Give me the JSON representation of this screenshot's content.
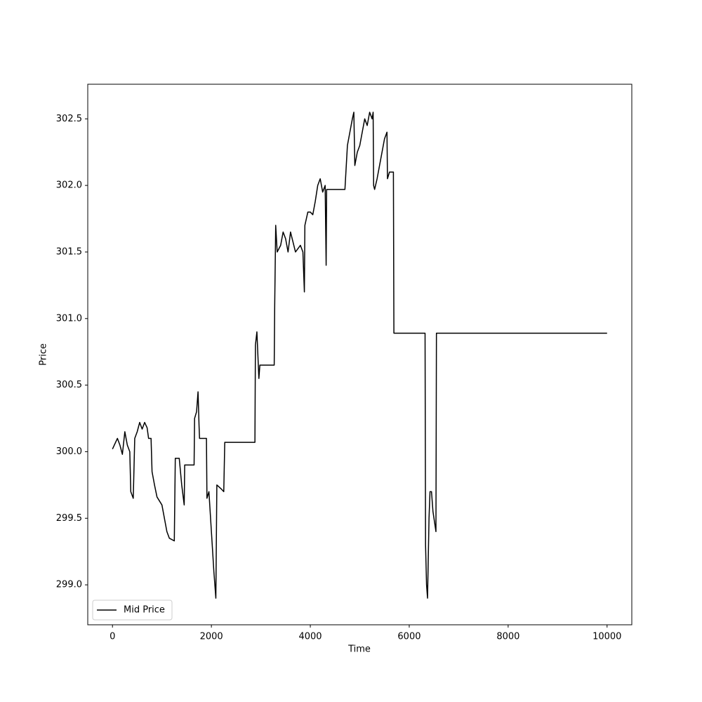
{
  "chart_data": {
    "type": "line",
    "xlabel": "Time",
    "ylabel": "Price",
    "xlim": [
      -500,
      10500
    ],
    "ylim": [
      298.7,
      302.76
    ],
    "xticks": [
      0,
      2000,
      4000,
      6000,
      8000,
      10000
    ],
    "yticks": [
      {
        "value": 299,
        "label": "299.0"
      },
      299.5,
      {
        "value": 300,
        "label": "300.0"
      },
      300.5,
      {
        "value": 301,
        "label": "301.0"
      },
      301.5,
      {
        "value": 302,
        "label": "302.0"
      },
      302.5
    ],
    "legend": "lower left",
    "x": [
      0,
      100,
      150,
      200,
      250,
      300,
      350,
      370,
      420,
      450,
      500,
      550,
      600,
      650,
      700,
      730,
      780,
      800,
      850,
      900,
      1000,
      1100,
      1150,
      1250,
      1270,
      1350,
      1400,
      1450,
      1460,
      1650,
      1660,
      1700,
      1730,
      1750,
      1760,
      1900,
      1910,
      1950,
      2000,
      2050,
      2090,
      2110,
      2200,
      2250,
      2270,
      2880,
      2890,
      2920,
      2960,
      2980,
      3270,
      3280,
      3300,
      3330,
      3400,
      3450,
      3500,
      3550,
      3600,
      3700,
      3800,
      3850,
      3880,
      3890,
      3950,
      4000,
      4050,
      4100,
      4150,
      4200,
      4250,
      4300,
      4320,
      4330,
      4700,
      4750,
      4800,
      4850,
      4880,
      4900,
      4950,
      5000,
      5050,
      5100,
      5150,
      5200,
      5250,
      5270,
      5280,
      5300,
      5350,
      5400,
      5450,
      5500,
      5550,
      5560,
      5600,
      5650,
      5680,
      5690,
      6320,
      6330,
      6350,
      6370,
      6400,
      6420,
      6450,
      6480,
      6520,
      6540,
      6550,
      10000
    ],
    "series": [
      {
        "name": "Mid Price",
        "color": "#000000",
        "values": [
          300.02,
          300.1,
          300.05,
          299.98,
          300.15,
          300.05,
          300.0,
          299.7,
          299.65,
          300.1,
          300.15,
          300.22,
          300.17,
          300.22,
          300.18,
          300.1,
          300.1,
          299.85,
          299.75,
          299.66,
          299.6,
          299.4,
          299.35,
          299.33,
          299.95,
          299.95,
          299.75,
          299.6,
          299.9,
          299.9,
          300.25,
          300.3,
          300.45,
          300.2,
          300.1,
          300.1,
          299.65,
          299.7,
          299.4,
          299.1,
          298.9,
          299.75,
          299.72,
          299.7,
          300.07,
          300.07,
          300.8,
          300.9,
          300.55,
          300.65,
          300.65,
          301.1,
          301.7,
          301.5,
          301.55,
          301.65,
          301.6,
          301.5,
          301.65,
          301.5,
          301.55,
          301.5,
          301.2,
          301.7,
          301.8,
          301.8,
          301.78,
          301.88,
          302.0,
          302.05,
          301.95,
          302.0,
          301.4,
          301.97,
          301.97,
          302.3,
          302.4,
          302.5,
          302.55,
          302.15,
          302.25,
          302.3,
          302.4,
          302.5,
          302.45,
          302.55,
          302.5,
          302.55,
          302.0,
          301.97,
          302.05,
          302.15,
          302.25,
          302.35,
          302.4,
          302.05,
          302.1,
          302.1,
          302.1,
          300.89,
          300.89,
          299.3,
          299.0,
          298.9,
          299.5,
          299.7,
          299.7,
          299.55,
          299.45,
          299.4,
          300.89,
          300.89
        ]
      }
    ]
  }
}
